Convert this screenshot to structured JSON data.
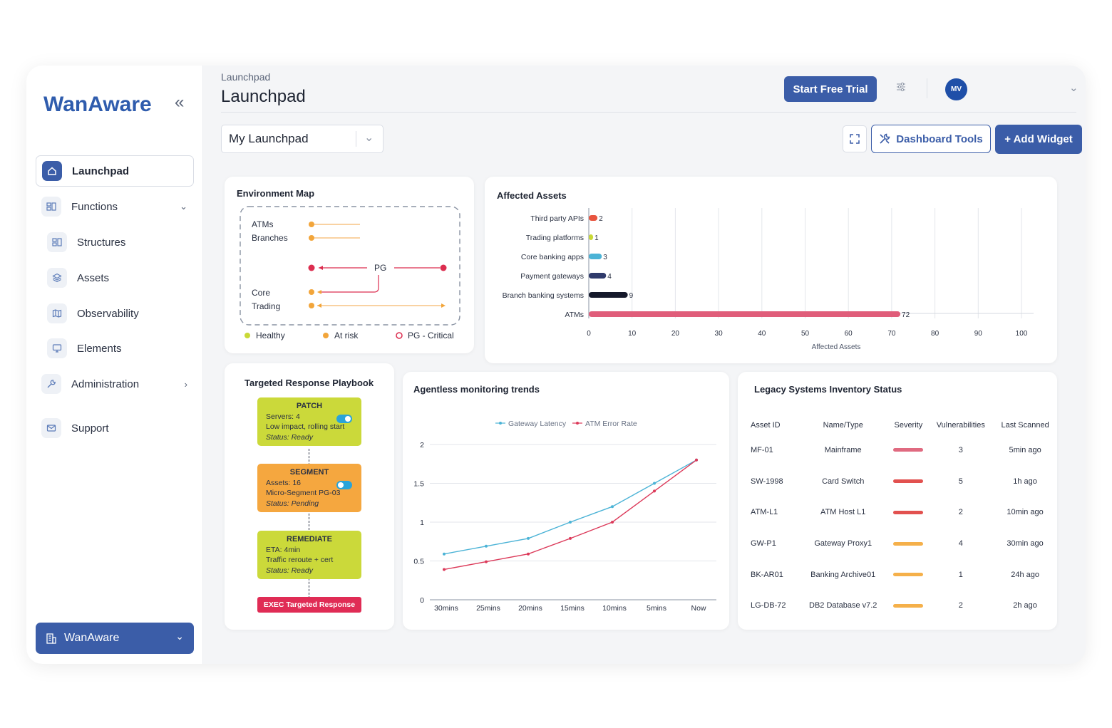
{
  "app": {
    "logo_text": "WanAware",
    "brand_color": "#3b5da8"
  },
  "sidebar": {
    "items": [
      {
        "label": "Launchpad",
        "icon": "home-icon"
      },
      {
        "label": "Functions",
        "icon": "grid-icon"
      },
      {
        "label": "Structures",
        "icon": "grid-icon"
      },
      {
        "label": "Assets",
        "icon": "layers-icon"
      },
      {
        "label": "Observability",
        "icon": "map-icon"
      },
      {
        "label": "Elements",
        "icon": "monitor-icon"
      },
      {
        "label": "Administration",
        "icon": "wrench-icon"
      },
      {
        "label": "Support",
        "icon": "mail-icon"
      }
    ],
    "org_label": "WanAware"
  },
  "header": {
    "breadcrumb": "Launchpad",
    "title": "Launchpad",
    "trial_label": "Start Free Trial",
    "avatar_initials": "MV"
  },
  "toolbar": {
    "dashboard_select": "My Launchpad",
    "tools_label": "Dashboard Tools",
    "add_widget_label": "+ Add Widget"
  },
  "environment_map": {
    "title": "Environment Map",
    "labels": {
      "atms": "ATMs",
      "branches": "Branches",
      "pg": "PG",
      "core": "Core",
      "trading": "Trading"
    },
    "legend": {
      "healthy": "Healthy",
      "at_risk": "At risk",
      "critical": "PG - Critical"
    },
    "colors": {
      "healthy": "#c9d936",
      "at_risk": "#f2a53a",
      "critical": "#dc2d4f"
    }
  },
  "affected_assets": {
    "chart_data": {
      "type": "bar",
      "orientation": "horizontal",
      "title": "Affected Assets",
      "xlabel": "Affected Assets",
      "categories": [
        "Third party APIs",
        "Trading platforms",
        "Core banking apps",
        "Payment gateways",
        "Branch banking systems",
        "ATMs"
      ],
      "values": [
        2,
        1,
        3,
        4,
        9,
        72
      ],
      "colors": [
        "#e8553f",
        "#c9d936",
        "#4bb3d6",
        "#2f3a6b",
        "#15192b",
        "#e05d7a"
      ],
      "xlim": [
        0,
        100
      ],
      "ticks": [
        "0",
        "10",
        "20",
        "30",
        "40",
        "50",
        "60",
        "70",
        "80",
        "90",
        "100"
      ]
    }
  },
  "playbook": {
    "title": "Targeted Response Playbook",
    "steps": [
      {
        "name": "PATCH",
        "line1": "Servers: 4",
        "line2": "Low impact, rolling start",
        "status": "Status: Ready",
        "color": "#cbd93a",
        "toggle_on": true
      },
      {
        "name": "SEGMENT",
        "line1": "Assets: 16",
        "line2": "Micro-Segment PG-03",
        "status": "Status: Pending",
        "color": "#f5a73f",
        "toggle_on": false
      },
      {
        "name": "REMEDIATE",
        "line1": "ETA: 4min",
        "line2": "Traffic reroute + cert",
        "status": "Status: Ready",
        "color": "#cbd93a",
        "toggle_on": false
      }
    ],
    "exec_label": "EXEC Targeted Response"
  },
  "trends": {
    "chart_data": {
      "type": "line",
      "title": "Agentless monitoring trends",
      "categories": [
        "30mins",
        "25mins",
        "20mins",
        "15mins",
        "10mins",
        "5mins",
        "Now"
      ],
      "ylim": [
        0,
        2
      ],
      "yticks": [
        "0",
        "0.5",
        "1",
        "1.5",
        "2"
      ],
      "series": [
        {
          "name": "Gateway Latency",
          "color": "#4bb3d6",
          "values": [
            0.59,
            0.69,
            0.79,
            1.0,
            1.2,
            1.5,
            1.8
          ]
        },
        {
          "name": "ATM Error Rate",
          "color": "#dc3a5a",
          "values": [
            0.39,
            0.49,
            0.59,
            0.79,
            1.0,
            1.4,
            1.8
          ]
        }
      ]
    }
  },
  "inventory": {
    "title": "Legacy Systems Inventory Status",
    "columns": [
      "Asset ID",
      "Name/Type",
      "Severity",
      "Vulnerabilities",
      "Last Scanned"
    ],
    "rows": [
      {
        "id": "MF-01",
        "name": "Mainframe",
        "severity_color": "#e06a80",
        "vulns": "3",
        "scanned": "5min ago"
      },
      {
        "id": "SW-1998",
        "name": "Card Switch",
        "severity_color": "#e2514f",
        "vulns": "5",
        "scanned": "1h ago"
      },
      {
        "id": "ATM-L1",
        "name": "ATM Host L1",
        "severity_color": "#e2514f",
        "vulns": "2",
        "scanned": "10min ago"
      },
      {
        "id": "GW-P1",
        "name": "Gateway Proxy1",
        "severity_color": "#f5b04a",
        "vulns": "4",
        "scanned": "30min ago"
      },
      {
        "id": "BK-AR01",
        "name": "Banking Archive01",
        "severity_color": "#f5b04a",
        "vulns": "1",
        "scanned": "24h ago"
      },
      {
        "id": "LG-DB-72",
        "name": "DB2 Database v7.2",
        "severity_color": "#f5b04a",
        "vulns": "2",
        "scanned": "2h ago"
      }
    ]
  }
}
